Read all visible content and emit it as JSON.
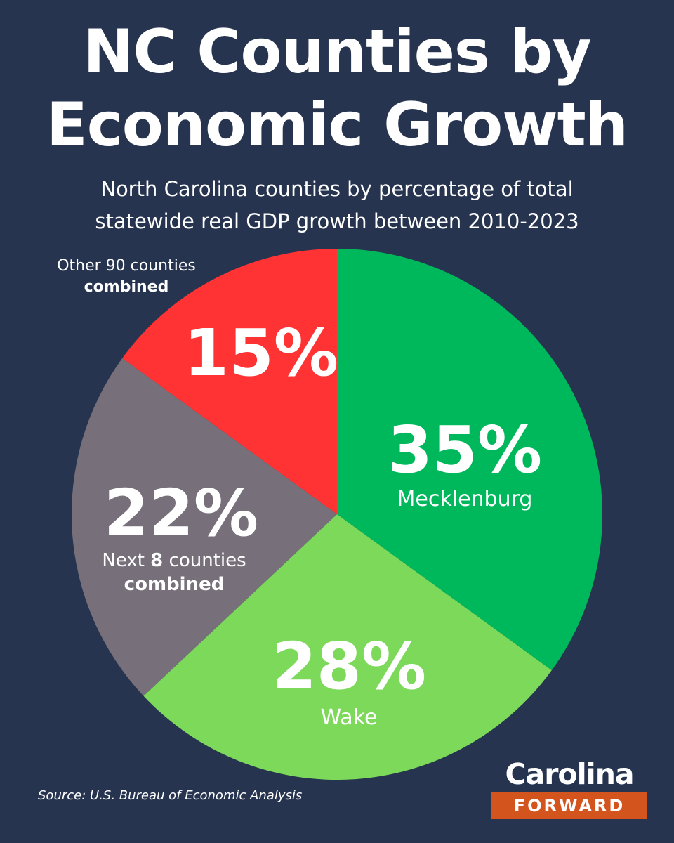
{
  "title_line1": "NC Counties by",
  "title_line2": "Economic Growth",
  "subtitle_line1": "North Carolina counties by percentage of total",
  "subtitle_line2": "statewide real GDP growth between 2010-2023",
  "source": "Source: U.S. Bureau of Economic Analysis",
  "logo": {
    "top": "Carolina",
    "bottom": "FORWARD"
  },
  "colors": {
    "background": "#27344f",
    "mecklenburg": "#00b85c",
    "wake": "#7dd95a",
    "next8": "#77707b",
    "other90": "#ff3333",
    "logo_accent": "#d4541e"
  },
  "chart_data": {
    "type": "pie",
    "title": "NC Counties by Economic Growth",
    "subtitle": "North Carolina counties by percentage of total statewide real GDP growth between 2010-2023",
    "start": "12 o'clock, clockwise",
    "slices": [
      {
        "label": "Mecklenburg",
        "value": 35,
        "value_label": "35%",
        "color": "#00b85c"
      },
      {
        "label": "Wake",
        "value": 28,
        "value_label": "28%",
        "color": "#7dd95a"
      },
      {
        "label": "Next 8 counties combined",
        "label_part1": "Next ",
        "label_bold": "8",
        "label_part2": " counties",
        "label_line2": "combined",
        "value": 22,
        "value_label": "22%",
        "color": "#77707b"
      },
      {
        "label": "Other 90 counties combined",
        "label_line1": "Other 90 counties",
        "label_line2": "combined",
        "value": 15,
        "value_label": "15%",
        "color": "#ff3333"
      }
    ]
  }
}
